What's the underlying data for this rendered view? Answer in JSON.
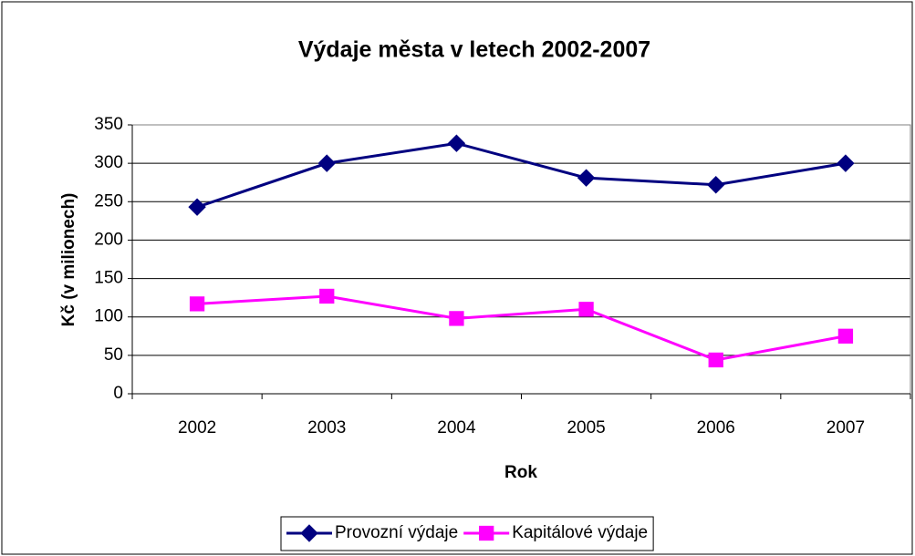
{
  "chart_data": {
    "type": "line",
    "title": "Výdaje města v letech 2002-2007",
    "x_label": "Rok",
    "y_label": "Kč (v milionech)",
    "categories": [
      "2002",
      "2003",
      "2004",
      "2005",
      "2006",
      "2007"
    ],
    "series": [
      {
        "name": "Provozní výdaje",
        "color": "#000080",
        "marker": "diamond",
        "values": [
          243,
          300,
          326,
          281,
          272,
          300
        ]
      },
      {
        "name": "Kapitálové výdaje",
        "color": "#FF00FF",
        "marker": "square",
        "values": [
          117,
          127,
          98,
          110,
          44,
          75
        ]
      }
    ],
    "ylim": [
      0,
      350
    ],
    "yticks": [
      0,
      50,
      100,
      150,
      200,
      250,
      300,
      350
    ],
    "grid": true,
    "legend": "bottom"
  }
}
